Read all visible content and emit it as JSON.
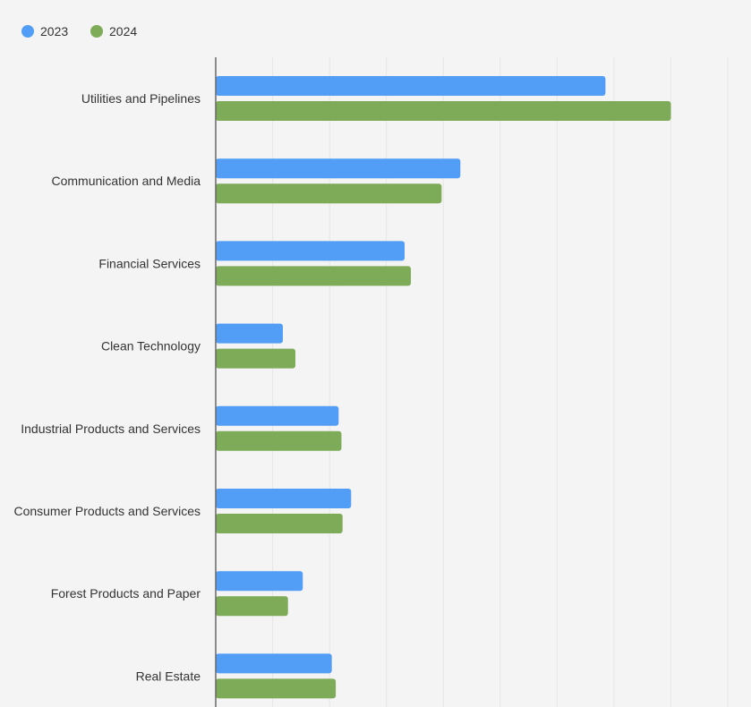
{
  "chart_data": {
    "type": "bar",
    "orientation": "horizontal",
    "title": "",
    "xlabel": "",
    "ylabel": "",
    "xlim": [
      0,
      90
    ],
    "grid": true,
    "legend_position": "top-left",
    "categories": [
      "Utilities and Pipelines",
      "Communication and Media",
      "Financial Services",
      "Clean Technology",
      "Industrial Products and Services",
      "Consumer Products and Services",
      "Forest Products and Paper",
      "Real Estate"
    ],
    "series": [
      {
        "name": "2023",
        "color": "#529ef6",
        "values": [
          68.5,
          43,
          33.2,
          11.8,
          21.6,
          23.8,
          15.3,
          20.4
        ]
      },
      {
        "name": "2024",
        "color": "#7dab58",
        "values": [
          80,
          39.7,
          34.3,
          14,
          22.1,
          22.3,
          12.7,
          21.1
        ]
      }
    ]
  }
}
